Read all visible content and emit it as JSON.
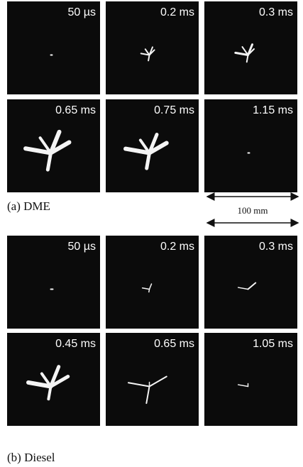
{
  "panels": [
    {
      "caption": "(a) DME",
      "frames": [
        "50 µs",
        "0.2 ms",
        "0.3 ms",
        "0.65 ms",
        "0.75 ms",
        "1.15 ms"
      ]
    },
    {
      "caption": "(b) Diesel",
      "frames": [
        "50 µs",
        "0.2 ms",
        "0.3 ms",
        "0.45 ms",
        "0.65 ms",
        "1.05 ms"
      ]
    }
  ],
  "scale_bar": "100 mm"
}
